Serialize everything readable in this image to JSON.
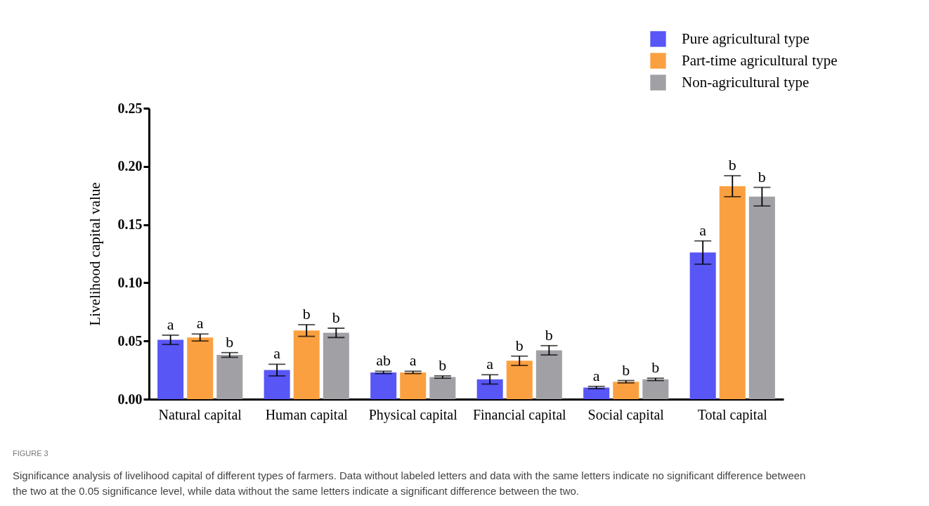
{
  "chart_data": {
    "type": "bar",
    "ylabel": "Livelihood capital value",
    "categories": [
      "Natural capital",
      "Human capital",
      "Physical capital",
      "Financial capital",
      "Social capital",
      "Total capital"
    ],
    "series": [
      {
        "name": "Pure agricultural type",
        "color": "#5856f5",
        "values": [
          0.051,
          0.025,
          0.023,
          0.017,
          0.01,
          0.126
        ],
        "errors": [
          0.004,
          0.005,
          0.001,
          0.004,
          0.001,
          0.01
        ],
        "value_labels": [
          "a",
          "a",
          "ab",
          "a",
          "a",
          "a"
        ]
      },
      {
        "name": "Part-time agricultural type",
        "color": "#fba040",
        "values": [
          0.053,
          0.059,
          0.023,
          0.033,
          0.015,
          0.183
        ],
        "errors": [
          0.003,
          0.005,
          0.001,
          0.004,
          0.001,
          0.009
        ],
        "value_labels": [
          "a",
          "b",
          "a",
          "b",
          "b",
          "b"
        ]
      },
      {
        "name": "Non-agricultural type",
        "color": "#a1a0a5",
        "values": [
          0.038,
          0.057,
          0.019,
          0.042,
          0.017,
          0.174
        ],
        "errors": [
          0.002,
          0.004,
          0.001,
          0.004,
          0.001,
          0.008
        ],
        "value_labels": [
          "b",
          "b",
          "b",
          "b",
          "b",
          "b"
        ]
      }
    ],
    "ylim": [
      0,
      0.25
    ],
    "yticks": [
      {
        "value": 0,
        "label": "0.00"
      },
      {
        "value": 0.05,
        "label": "0.05"
      },
      {
        "value": 0.1,
        "label": "0.10"
      },
      {
        "value": 0.15,
        "label": "0.15"
      },
      {
        "value": 0.2,
        "label": "0.20"
      },
      {
        "value": 0.25,
        "label": "0.25"
      }
    ],
    "legend": "top right",
    "grid": false,
    "annotations": [
      "FIGURE 3",
      "Significance analysis of livelihood capital of different types of farmers. Data without labeled letters and data with the same letters indicate no significant difference between the two at the 0.05 significance level, while data without the same letters indicate a significant difference between the two."
    ]
  }
}
